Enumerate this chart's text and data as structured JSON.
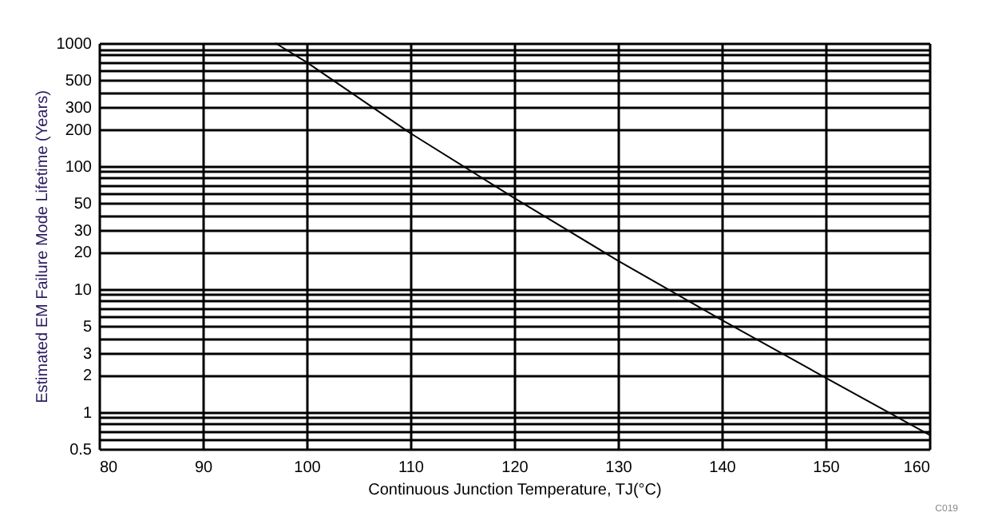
{
  "chart_data": {
    "type": "line",
    "xlabel": "Continuous Junction Temperature, TJ(°C)",
    "ylabel": "Estimated EM Failure Mode Lifetime (Years)",
    "annotations": [
      "C019"
    ],
    "x": [
      97,
      100,
      110,
      120,
      130,
      140,
      150,
      160
    ],
    "series": [
      {
        "color": "#000000",
        "values": [
          1000,
          700,
          185,
          55,
          17,
          5.6,
          1.9,
          0.65
        ]
      }
    ],
    "log": "y",
    "xlim": [
      80,
      160
    ],
    "xticks": [
      80,
      90,
      100,
      110,
      120,
      130,
      140,
      150,
      160
    ],
    "ylim": [
      0.5,
      1000
    ],
    "yticks": [
      0.5,
      {
        "value": 0.6,
        "label": null
      },
      {
        "value": 0.7,
        "label": null
      },
      {
        "value": 0.8,
        "label": null
      },
      {
        "value": 0.9,
        "label": null
      },
      1,
      2,
      3,
      {
        "value": 4,
        "label": null
      },
      5,
      {
        "value": 6,
        "label": null
      },
      {
        "value": 7,
        "label": null
      },
      {
        "value": 8,
        "label": null
      },
      {
        "value": 9,
        "label": null
      },
      10,
      20,
      30,
      {
        "value": 40,
        "label": null
      },
      50,
      {
        "value": 60,
        "label": null
      },
      {
        "value": 70,
        "label": null
      },
      {
        "value": 80,
        "label": null
      },
      {
        "value": 90,
        "label": null
      },
      100,
      200,
      300,
      {
        "value": 400,
        "label": null
      },
      500,
      {
        "value": 600,
        "label": null
      },
      {
        "value": 700,
        "label": null
      },
      {
        "value": 800,
        "label": null
      },
      {
        "value": 900,
        "label": null
      },
      1000
    ],
    "grid": true,
    "legend": false,
    "marker": "none",
    "line_style": "solid"
  }
}
